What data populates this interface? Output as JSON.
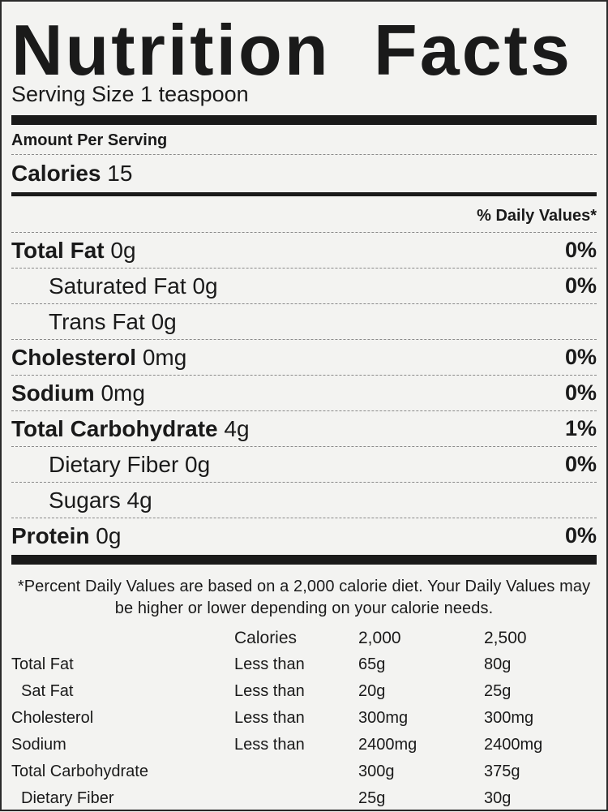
{
  "title": "Nutrition Facts",
  "serving_size": "Serving Size 1 teaspoon",
  "amount_per_serving": "Amount Per Serving",
  "calories": {
    "label": "Calories",
    "value": "15"
  },
  "daily_values_header": "% Daily Values*",
  "nutrients": [
    {
      "label": "Total Fat",
      "amount": "0g",
      "percent": "0%"
    },
    {
      "label": "Saturated Fat",
      "amount": "0g",
      "percent": "0%"
    },
    {
      "label": "Trans Fat",
      "amount": "0g",
      "percent": ""
    },
    {
      "label": "Cholesterol",
      "amount": "0mg",
      "percent": "0%"
    },
    {
      "label": "Sodium",
      "amount": "0mg",
      "percent": "0%"
    },
    {
      "label": "Total Carbohydrate",
      "amount": "4g",
      "percent": "1%"
    },
    {
      "label": "Dietary Fiber",
      "amount": "0g",
      "percent": "0%"
    },
    {
      "label": "Sugars",
      "amount": "4g",
      "percent": ""
    },
    {
      "label": "Protein",
      "amount": "0g",
      "percent": "0%"
    }
  ],
  "footnote": "*Percent Daily Values are based on a 2,000 calorie diet. Your Daily Values may be higher or lower depending on your calorie needs.",
  "reference_table": {
    "header": [
      "",
      "Calories",
      "2,000",
      "2,500"
    ],
    "rows": [
      [
        "Total Fat",
        "Less than",
        "65g",
        "80g"
      ],
      [
        "Sat Fat",
        "Less than",
        "20g",
        "25g"
      ],
      [
        "Cholesterol",
        "Less than",
        "300mg",
        "300mg"
      ],
      [
        "Sodium",
        "Less than",
        "2400mg",
        "2400mg"
      ],
      [
        "Total Carbohydrate",
        "",
        "300g",
        "375g"
      ],
      [
        "Dietary Fiber",
        "",
        "25g",
        "30g"
      ]
    ]
  }
}
